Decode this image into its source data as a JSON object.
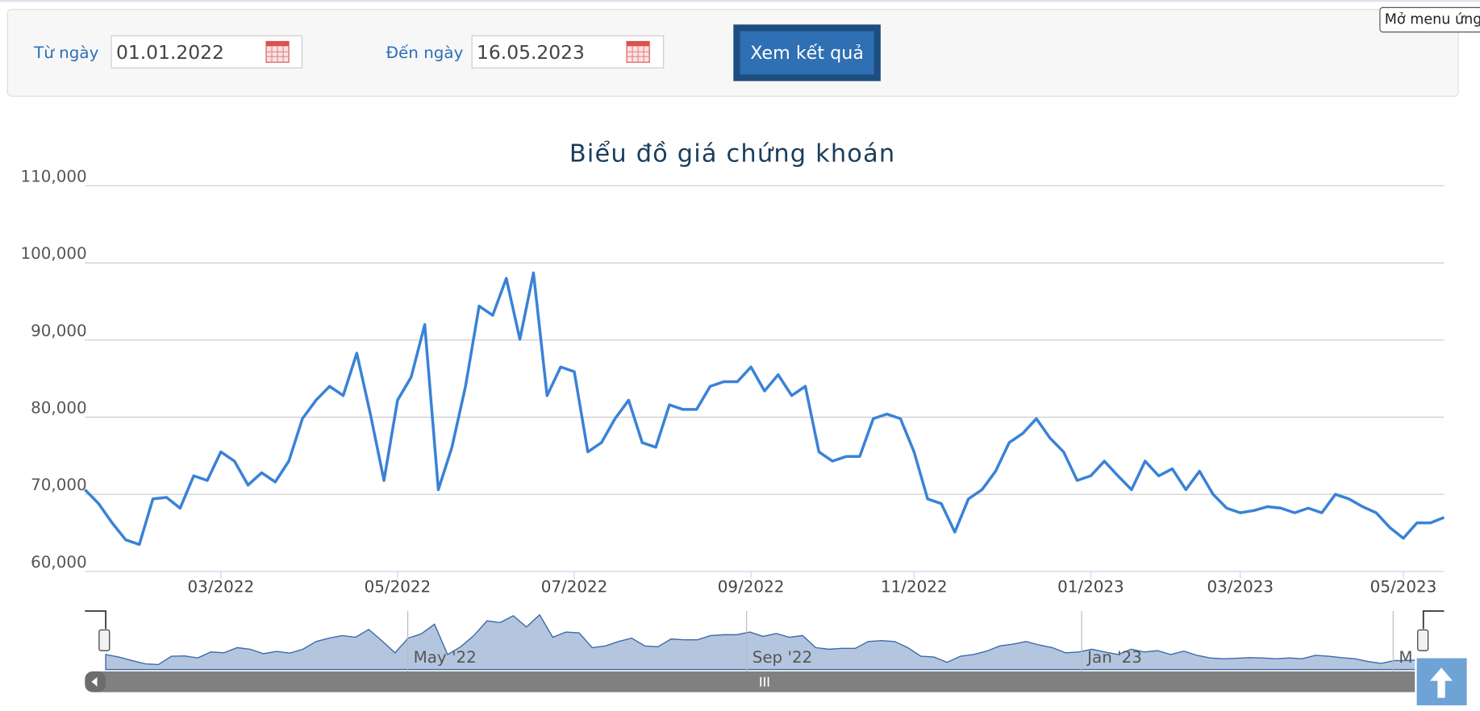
{
  "form": {
    "from_label": "Từ ngày",
    "from_value": "01.01.2022",
    "to_label": "Đến ngày",
    "to_value": "16.05.2023",
    "submit": "Xem kết quả"
  },
  "tooltip": "Mở menu ứng",
  "chart_data": {
    "type": "line",
    "title": "Biểu đồ giá chứng khoán",
    "color": "#3a82d6",
    "categories": [
      null,
      null,
      null,
      null,
      null,
      null,
      null,
      null,
      null,
      null,
      "03/2022",
      null,
      null,
      null,
      null,
      null,
      null,
      null,
      null,
      null,
      null,
      null,
      null,
      "05/2022",
      null,
      null,
      null,
      null,
      null,
      null,
      null,
      null,
      null,
      null,
      null,
      null,
      "07/2022",
      null,
      null,
      null,
      null,
      null,
      null,
      null,
      null,
      null,
      null,
      null,
      null,
      "09/2022",
      null,
      null,
      null,
      null,
      null,
      null,
      null,
      null,
      null,
      null,
      null,
      "11/2022",
      null,
      null,
      null,
      null,
      null,
      null,
      null,
      null,
      null,
      null,
      null,
      null,
      "01/2023",
      null,
      null,
      null,
      null,
      null,
      null,
      null,
      null,
      null,
      null,
      "03/2023",
      null,
      null,
      null,
      null,
      null,
      null,
      null,
      null,
      null,
      null,
      null,
      "05/2023",
      null,
      null,
      null
    ],
    "values": [
      70600,
      68800,
      66300,
      64100,
      63500,
      69400,
      69600,
      68200,
      72400,
      71800,
      75500,
      74300,
      71200,
      72800,
      71600,
      74300,
      79800,
      82200,
      84000,
      82800,
      88300,
      80400,
      71800,
      82200,
      85200,
      92000,
      70600,
      76100,
      84000,
      94400,
      93200,
      98000,
      90100,
      98700,
      82800,
      86500,
      85900,
      75500,
      76700,
      79800,
      82200,
      76700,
      76100,
      81600,
      81000,
      81000,
      84000,
      84600,
      84600,
      86500,
      83400,
      85500,
      82800,
      84000,
      75500,
      74300,
      74900,
      74900,
      79800,
      80400,
      79800,
      75500,
      69400,
      68800,
      65100,
      69400,
      70600,
      73000,
      76700,
      77900,
      79800,
      77300,
      75500,
      71800,
      72400,
      74300,
      72400,
      70600,
      74300,
      72400,
      73300,
      70600,
      73000,
      70000,
      68200,
      67600,
      67900,
      68400,
      68200,
      67600,
      68200,
      67600,
      70000,
      69400,
      68400,
      67600,
      65700,
      64300,
      66300,
      66300,
      67000
    ],
    "ylim": [
      60000,
      110000
    ],
    "yticks": [
      {
        "value": 60000,
        "label": "60,000"
      },
      {
        "value": 70000,
        "label": "70,000"
      },
      {
        "value": 80000,
        "label": "80,000"
      },
      {
        "value": 90000,
        "label": "90,000"
      },
      {
        "value": 100000,
        "label": "100,000"
      },
      {
        "value": 110000,
        "label": "110,000"
      }
    ],
    "grid": true,
    "navigator_labels": [
      "May '22",
      "Sep '22",
      "Jan '23",
      "M"
    ]
  }
}
